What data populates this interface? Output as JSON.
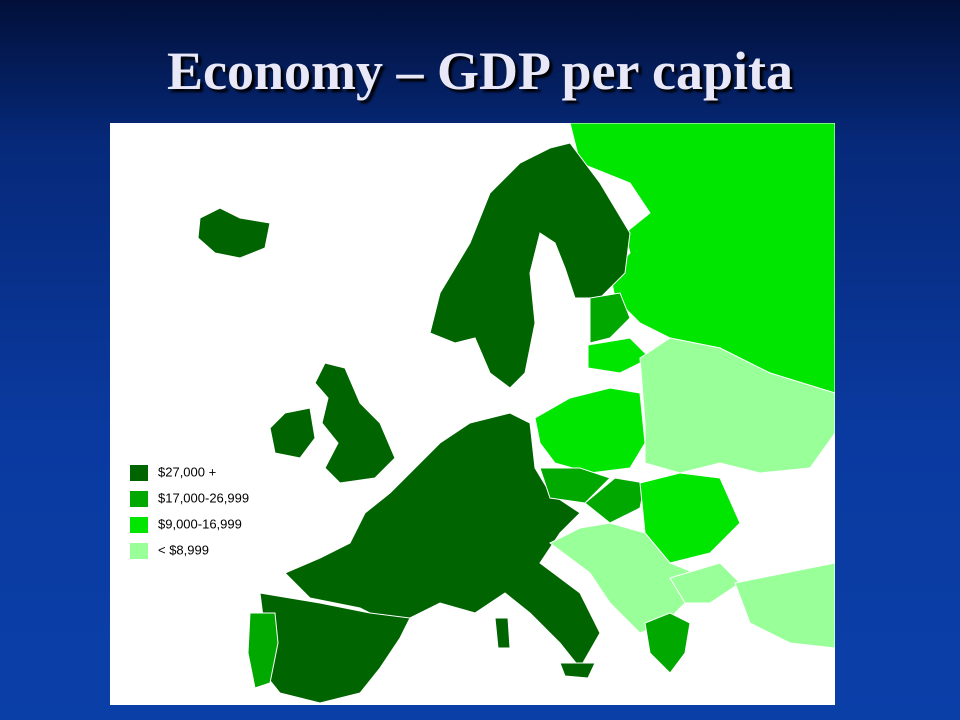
{
  "title": "Economy – GDP per capita",
  "legend": {
    "items": [
      {
        "label": "$27,000 +",
        "color": "#006400"
      },
      {
        "label": "$17,000-26,999",
        "color": "#00a800"
      },
      {
        "label": "$9,000-16,999",
        "color": "#00e600"
      },
      {
        "label": "< $8,999",
        "color": "#99ff99"
      }
    ]
  }
}
